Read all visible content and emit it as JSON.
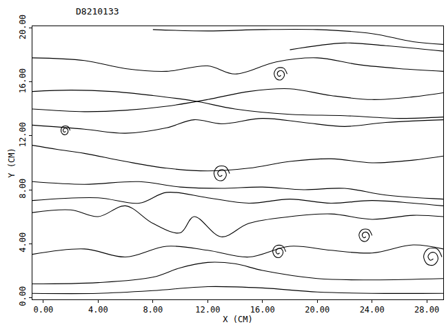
{
  "chart_data": {
    "type": "line",
    "title": "D8210133",
    "x_label": "X (CM)",
    "y_label": "Y (CM)",
    "xlim": [
      -0.8,
      29.2
    ],
    "ylim": [
      -0.15,
      20.15
    ],
    "xticks": [
      {
        "value": 0,
        "label": "0.00"
      },
      {
        "value": 4,
        "label": "4.00"
      },
      {
        "value": 8,
        "label": "8.00"
      },
      {
        "value": 12,
        "label": "12.00"
      },
      {
        "value": 16,
        "label": "16.00"
      },
      {
        "value": 20,
        "label": "20.00"
      },
      {
        "value": 24,
        "label": "24.00"
      },
      {
        "value": 28,
        "label": "28.00"
      }
    ],
    "yticks": [
      {
        "value": 0,
        "label": "0.00"
      },
      {
        "value": 4,
        "label": "4.00"
      },
      {
        "value": 8,
        "label": "8.00"
      },
      {
        "value": 12,
        "label": "12.00"
      },
      {
        "value": 16,
        "label": "16.00"
      },
      {
        "value": 20,
        "label": "20.00"
      }
    ],
    "grid": false,
    "line_style": "solid",
    "color": "#000000",
    "series": [
      {
        "x": [
          -0.8,
          2,
          5,
          8,
          11,
          14,
          18,
          22,
          26,
          29.2
        ],
        "y": [
          15.3,
          15.4,
          15.3,
          15.0,
          14.6,
          14.0,
          13.6,
          13.5,
          13.3,
          13.4
        ]
      },
      {
        "x": [
          8,
          12,
          16,
          20,
          24,
          27,
          29.2
        ],
        "y": [
          19.9,
          19.8,
          19.9,
          19.9,
          19.6,
          19.0,
          18.8
        ]
      },
      {
        "x": [
          18,
          22,
          25,
          29.2
        ],
        "y": [
          18.4,
          18.9,
          18.7,
          18.3
        ]
      },
      {
        "x": [
          -0.8,
          1,
          3,
          6,
          9,
          12,
          15,
          18,
          21,
          24,
          27,
          29.2
        ],
        "y": [
          11.3,
          11.0,
          10.7,
          10.1,
          9.6,
          9.4,
          9.6,
          10.1,
          10.3,
          10.0,
          10.2,
          10.5
        ]
      },
      {
        "x": [
          -0.8,
          3,
          7,
          10,
          13,
          16,
          19,
          22,
          25,
          29.2
        ],
        "y": [
          8.6,
          8.4,
          8.6,
          8.2,
          8.1,
          8.2,
          8.0,
          8.1,
          7.6,
          7.3
        ]
      },
      {
        "x": [
          -0.8,
          4,
          8,
          12,
          16,
          20,
          24,
          29.2
        ],
        "y": [
          0.3,
          0.3,
          0.5,
          0.8,
          0.7,
          0.4,
          0.3,
          0.3
        ]
      },
      {
        "x": [
          -0.8,
          4,
          8,
          10,
          12,
          14,
          16,
          20,
          24,
          29.2
        ],
        "y": [
          1.0,
          1.1,
          1.5,
          2.2,
          2.6,
          2.5,
          2.0,
          1.4,
          1.3,
          1.4
        ]
      },
      {
        "x": [
          -0.8,
          2,
          4,
          6,
          8,
          10,
          11,
          13,
          15,
          18,
          21,
          24,
          27,
          29.2
        ],
        "y": [
          6.3,
          6.5,
          6.0,
          6.8,
          5.5,
          4.8,
          6.0,
          4.5,
          5.5,
          6.0,
          6.2,
          5.8,
          6.1,
          6.0
        ]
      },
      {
        "x": [
          -0.8,
          3,
          6,
          9,
          11,
          13,
          16,
          19,
          22,
          25,
          29.2
        ],
        "y": [
          12.8,
          12.5,
          12.2,
          12.6,
          13.2,
          12.9,
          13.3,
          13.0,
          12.7,
          13.0,
          13.2
        ]
      },
      {
        "x": [
          -0.8,
          3,
          6,
          9,
          12,
          14,
          17,
          20,
          23,
          26,
          29.2
        ],
        "y": [
          17.8,
          17.6,
          17.0,
          16.8,
          17.2,
          16.6,
          17.5,
          17.8,
          17.3,
          17.0,
          16.8
        ]
      },
      {
        "x": [
          -0.8,
          3,
          6,
          9,
          12,
          15,
          18,
          21,
          24,
          27,
          29.2
        ],
        "y": [
          14.0,
          13.8,
          13.9,
          14.2,
          14.7,
          15.3,
          15.5,
          15.0,
          14.7,
          14.9,
          15.2
        ]
      },
      {
        "x": [
          -0.8,
          3,
          6,
          9,
          12,
          15,
          18,
          21,
          24,
          27,
          29.2
        ],
        "y": [
          3.2,
          3.6,
          3.0,
          3.8,
          3.5,
          3.0,
          3.8,
          3.5,
          3.3,
          3.9,
          3.6
        ]
      },
      {
        "x": [
          -0.8,
          4,
          7,
          9,
          12,
          15,
          18,
          21,
          24,
          27,
          29.2
        ],
        "y": [
          7.2,
          7.4,
          7.0,
          7.8,
          7.4,
          7.0,
          7.3,
          7.0,
          7.2,
          7.0,
          6.8
        ]
      },
      {
        "x": [
          13.6,
          13.3,
          12.73,
          12.46,
          12.67,
          13.09,
          13.36,
          13.21,
          12.91,
          12.73,
          12.88,
          13.06
        ],
        "y": [
          9.2,
          9.71,
          9.71,
          9.26,
          8.75,
          8.69,
          9.08,
          9.44,
          9.47,
          9.23,
          8.99,
          9.08
        ]
      },
      {
        "x": [
          17.7,
          17.45,
          16.98,
          16.75,
          16.93,
          17.28,
          17.5,
          17.38,
          17.13,
          16.98,
          17.1,
          17.25
        ],
        "y": [
          3.4,
          3.83,
          3.83,
          3.45,
          3.03,
          2.98,
          3.3,
          3.6,
          3.63,
          3.43,
          3.23,
          3.3
        ]
      },
      {
        "x": [
          29.1,
          28.75,
          28.09,
          27.77,
          28.02,
          28.51,
          28.82,
          28.65,
          28.3,
          28.09,
          28.26,
          28.47
        ],
        "y": [
          3.0,
          3.6,
          3.6,
          3.07,
          2.48,
          2.41,
          2.86,
          3.28,
          3.32,
          3.04,
          2.76,
          2.86
        ]
      },
      {
        "x": [
          24.0,
          23.75,
          23.28,
          23.05,
          23.23,
          23.58,
          23.8,
          23.68,
          23.43,
          23.28,
          23.4,
          23.55
        ],
        "y": [
          4.6,
          5.03,
          5.03,
          4.65,
          4.23,
          4.18,
          4.5,
          4.8,
          4.83,
          4.63,
          4.43,
          4.5
        ]
      },
      {
        "x": [
          17.8,
          17.55,
          17.08,
          16.85,
          17.03,
          17.38,
          17.6,
          17.48,
          17.23,
          17.08,
          17.2,
          17.35
        ],
        "y": [
          16.6,
          17.03,
          17.03,
          16.65,
          16.23,
          16.18,
          16.5,
          16.8,
          16.83,
          16.63,
          16.43,
          16.5
        ]
      },
      {
        "x": [
          1.95,
          1.78,
          1.44,
          1.29,
          1.41,
          1.65,
          1.81,
          1.72,
          1.55,
          1.44,
          1.53,
          1.64
        ],
        "y": [
          12.4,
          12.7,
          12.7,
          12.44,
          12.14,
          12.1,
          12.33,
          12.54,
          12.56,
          12.42,
          12.28,
          12.33
        ]
      }
    ]
  }
}
